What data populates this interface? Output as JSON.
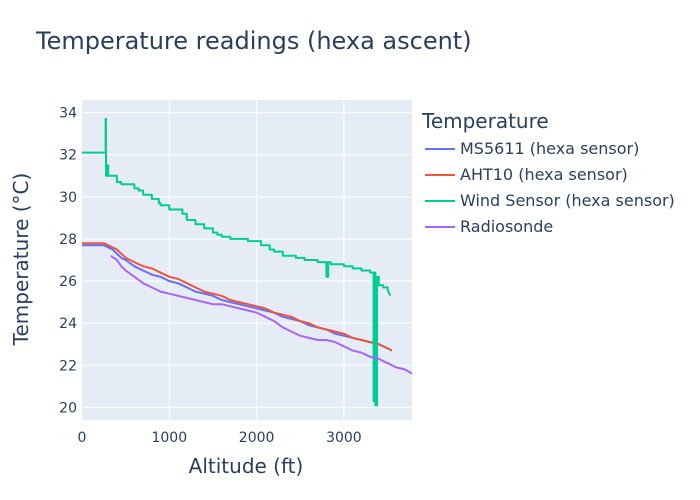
{
  "chart_data": {
    "type": "line",
    "title": "Temperature readings (hexa ascent)",
    "xlabel": "Altitude (ft)",
    "ylabel": "Temperature (°C)",
    "xlim": [
      0,
      3780
    ],
    "ylim": [
      19.4,
      34.6
    ],
    "x_ticks": [
      0,
      1000,
      2000,
      3000
    ],
    "y_ticks": [
      20,
      22,
      24,
      26,
      28,
      30,
      32,
      34
    ],
    "x_tick_labels": [
      "0",
      "1000",
      "2000",
      "3000"
    ],
    "y_tick_labels": [
      "20",
      "22",
      "24",
      "26",
      "28",
      "30",
      "32",
      "34"
    ],
    "grid": true,
    "legend_title": "Temperature",
    "legend_position": "right",
    "plot_background": "#e5ecf6",
    "grid_color": "#ffffff",
    "text_color": "#2a3f5f",
    "series": [
      {
        "name": "MS5611 (hexa sensor)",
        "color": "#636efa",
        "x": [
          0,
          250,
          300,
          350,
          400,
          450,
          500,
          600,
          700,
          800,
          900,
          1000,
          1100,
          1200,
          1300,
          1400,
          1500,
          1600,
          1700,
          1800,
          1900,
          2000,
          2100,
          2200,
          2300,
          2400,
          2500,
          2600,
          2700,
          2800,
          2900,
          3000,
          3100,
          3200,
          3300,
          3400,
          3500,
          3550
        ],
        "y": [
          27.7,
          27.7,
          27.6,
          27.5,
          27.3,
          27.1,
          27.0,
          26.7,
          26.5,
          26.3,
          26.2,
          26.0,
          25.9,
          25.7,
          25.5,
          25.4,
          25.3,
          25.1,
          25.0,
          24.9,
          24.8,
          24.7,
          24.6,
          24.5,
          24.3,
          24.2,
          24.1,
          23.9,
          23.8,
          23.7,
          23.5,
          23.4,
          23.3,
          23.2,
          23.1,
          23.0,
          22.8,
          22.7
        ]
      },
      {
        "name": "AHT10 (hexa sensor)",
        "color": "#ef553b",
        "x": [
          0,
          250,
          300,
          350,
          400,
          450,
          500,
          600,
          700,
          800,
          900,
          1000,
          1100,
          1200,
          1300,
          1400,
          1500,
          1600,
          1700,
          1800,
          1900,
          2000,
          2100,
          2200,
          2300,
          2400,
          2500,
          2600,
          2700,
          2800,
          2900,
          3000,
          3100,
          3200,
          3300,
          3400,
          3500,
          3550
        ],
        "y": [
          27.8,
          27.8,
          27.7,
          27.6,
          27.5,
          27.3,
          27.1,
          26.9,
          26.7,
          26.6,
          26.4,
          26.2,
          26.1,
          25.9,
          25.7,
          25.5,
          25.4,
          25.3,
          25.1,
          25.0,
          24.9,
          24.8,
          24.7,
          24.5,
          24.4,
          24.3,
          24.1,
          24.0,
          23.8,
          23.7,
          23.6,
          23.5,
          23.3,
          23.2,
          23.1,
          23.0,
          22.8,
          22.7
        ]
      },
      {
        "name": "Wind Sensor (hexa sensor)",
        "color": "#00cc96",
        "x": [
          0,
          270,
          270,
          275,
          275,
          285,
          285,
          300,
          300,
          350,
          350,
          400,
          400,
          450,
          450,
          600,
          600,
          650,
          650,
          700,
          700,
          800,
          800,
          880,
          880,
          900,
          900,
          1000,
          1000,
          1150,
          1150,
          1200,
          1200,
          1300,
          1300,
          1400,
          1400,
          1500,
          1500,
          1550,
          1550,
          1600,
          1600,
          1700,
          1700,
          1900,
          1900,
          2050,
          2050,
          2150,
          2150,
          2200,
          2200,
          2300,
          2300,
          2450,
          2450,
          2550,
          2550,
          2700,
          2700,
          2800,
          2800,
          2820,
          2820,
          2850,
          2850,
          3000,
          3000,
          3100,
          3100,
          3200,
          3200,
          3300,
          3300,
          3340,
          3340,
          3350,
          3350,
          3360,
          3360,
          3380,
          3380,
          3400,
          3400,
          3450,
          3450,
          3500,
          3500,
          3530
        ],
        "y": [
          32.1,
          32.1,
          33.7,
          33.7,
          31.0,
          31.0,
          31.5,
          31.5,
          31.0,
          31.0,
          31.0,
          31.0,
          30.7,
          30.7,
          30.6,
          30.6,
          30.4,
          30.4,
          30.3,
          30.3,
          30.1,
          30.1,
          29.9,
          29.9,
          29.7,
          29.7,
          29.6,
          29.6,
          29.4,
          29.4,
          29.2,
          29.2,
          28.9,
          28.9,
          28.7,
          28.7,
          28.5,
          28.5,
          28.3,
          28.3,
          28.2,
          28.2,
          28.1,
          28.1,
          28.0,
          28.0,
          27.9,
          27.9,
          27.7,
          27.7,
          27.5,
          27.5,
          27.4,
          27.4,
          27.2,
          27.2,
          27.1,
          27.1,
          27.0,
          27.0,
          26.9,
          26.9,
          26.2,
          26.2,
          26.9,
          26.9,
          26.8,
          26.8,
          26.7,
          26.7,
          26.6,
          26.6,
          26.5,
          26.5,
          26.4,
          26.4,
          20.3,
          20.3,
          26.4,
          26.4,
          20.1,
          20.1,
          26.2,
          26.2,
          25.8,
          25.8,
          25.7,
          25.7,
          25.6,
          25.3
        ]
      },
      {
        "name": "Radiosonde",
        "color": "#ab63fa",
        "x": [
          330,
          400,
          450,
          500,
          600,
          700,
          800,
          900,
          1000,
          1100,
          1200,
          1300,
          1400,
          1500,
          1600,
          1700,
          1800,
          1900,
          2000,
          2100,
          2200,
          2300,
          2400,
          2500,
          2600,
          2700,
          2800,
          2900,
          3000,
          3100,
          3200,
          3300,
          3400,
          3500,
          3600,
          3700,
          3780
        ],
        "y": [
          27.2,
          27.0,
          26.7,
          26.5,
          26.2,
          25.9,
          25.7,
          25.5,
          25.4,
          25.3,
          25.2,
          25.1,
          25.0,
          24.9,
          24.9,
          24.8,
          24.7,
          24.6,
          24.5,
          24.3,
          24.1,
          23.8,
          23.6,
          23.4,
          23.3,
          23.2,
          23.2,
          23.1,
          22.9,
          22.7,
          22.6,
          22.4,
          22.3,
          22.1,
          21.9,
          21.8,
          21.6
        ]
      }
    ]
  }
}
